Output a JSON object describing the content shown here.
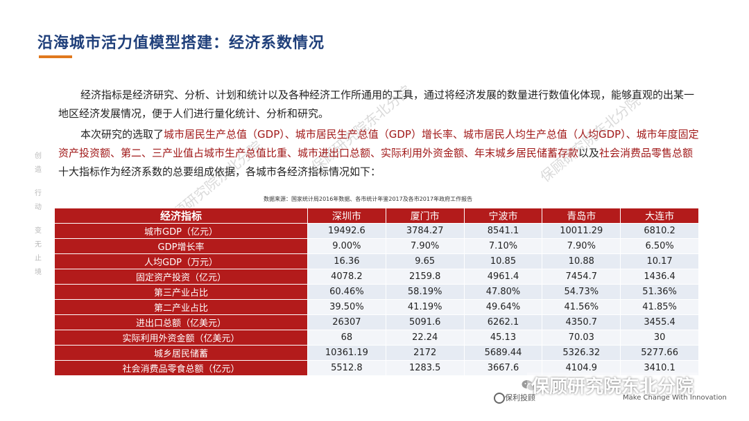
{
  "title": "沿海城市活力值模型搭建：经济系数情况",
  "side_motto": [
    "创",
    "造",
    "行",
    "动",
    "变",
    "无",
    "止",
    "境"
  ],
  "paragraph1": "经济指标是经济研究、分析、计划和统计以及各种经济工作所通用的工具，通过将经济发展的数量进行数值化体现，能够直观的出某一地区经济发展情况，便于人们进行量化统计、分析和研究。",
  "paragraph2": {
    "before": "本次研究的选取了",
    "highlight": "城市居民生产总值（GDP）、城市居民生产总值（GDP）增长率、城市居民人均生产总值（人均GDP）、城市年度固定资产投资额、第二、三产业值占城市生产总值比重、城市进出口总额、实际利用外资金额、年末城乡居民储蓄存款",
    "middle": "以及",
    "highlight2": "社会消费品零售总额",
    "after": "十大指标作为经济系数的总要组成依据，各城市各经济指标情况如下："
  },
  "source_note": "数据来源：国家统计局2016年数据、各市统计年鉴2017及各市2017年政府工作报告",
  "table": {
    "header": [
      "经济指标",
      "深圳市",
      "厦门市",
      "宁波市",
      "青岛市",
      "大连市"
    ],
    "rows": [
      {
        "label": "城市GDP（亿元）",
        "values": [
          "19492.6",
          "3784.27",
          "8541.1",
          "10011.29",
          "6810.2"
        ]
      },
      {
        "label": "GDP增长率",
        "values": [
          "9.00%",
          "7.90%",
          "7.10%",
          "7.90%",
          "6.50%"
        ]
      },
      {
        "label": "人均GDP（万元）",
        "values": [
          "16.36",
          "9.65",
          "10.85",
          "10.88",
          "10.17"
        ]
      },
      {
        "label": "固定资产投资（亿元）",
        "values": [
          "4078.2",
          "2159.8",
          "4961.4",
          "7454.7",
          "1436.4"
        ]
      },
      {
        "label": "第三产业占比",
        "values": [
          "60.46%",
          "58.19%",
          "47.80%",
          "54.73%",
          "51.36%"
        ]
      },
      {
        "label": "第二产业占比",
        "values": [
          "39.50%",
          "41.19%",
          "49.64%",
          "41.56%",
          "41.85%"
        ]
      },
      {
        "label": "进出口总额（亿美元）",
        "values": [
          "26307",
          "5091.6",
          "6262.1",
          "4350.7",
          "3455.4"
        ]
      },
      {
        "label": "实际利用外资金额（亿美元）",
        "values": [
          "68",
          "22.24",
          "45.13",
          "70.03",
          "30"
        ]
      },
      {
        "label": "城乡居民储蓄",
        "values": [
          "10361.19",
          "2172",
          "5689.44",
          "5326.32",
          "5277.66"
        ]
      },
      {
        "label": "社会消费品零食总额（亿元）",
        "values": [
          "5512.8",
          "1283.5",
          "3667.6",
          "4104.9",
          "3410.1"
        ]
      }
    ]
  },
  "watermark": "保顾研究院东北分院",
  "footer": {
    "tag": "保顾研究院东北分院",
    "logo_text": "保利投顾",
    "slogan": "Make Change With Innovation"
  }
}
